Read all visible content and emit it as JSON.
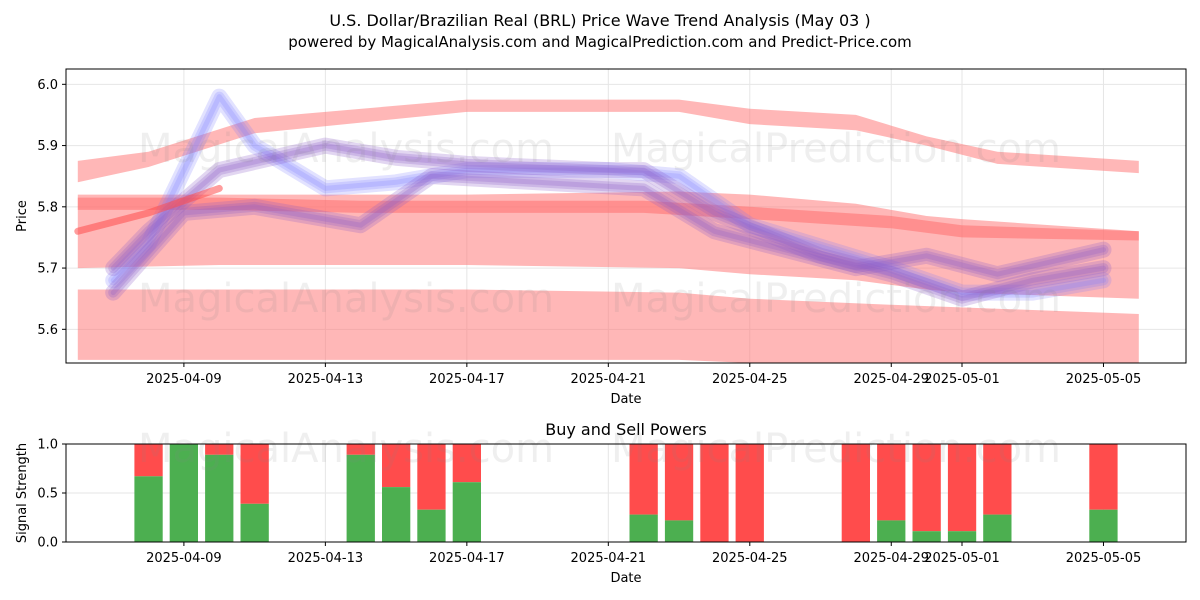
{
  "header": {
    "title": "U.S. Dollar/Brazilian Real (BRL) Price Wave Trend Analysis (May 03 )",
    "subtitle": "powered by MagicalAnalysis.com and MagicalPrediction.com and Predict-Price.com"
  },
  "watermarks": [
    "MagicalAnalysis.com",
    "MagicalPrediction.com"
  ],
  "colors": {
    "buy": "#4caf50",
    "sell": "#ff4c4c",
    "wave_red": "#ff6f6f",
    "wave_blue": "#7a7aff"
  },
  "chart_data": [
    {
      "type": "area",
      "title": "",
      "xlabel": "Date",
      "ylabel": "Price",
      "x_ticks": [
        "2025-04-09",
        "2025-04-13",
        "2025-04-17",
        "2025-04-21",
        "2025-04-25",
        "2025-04-29",
        "2025-05-01",
        "2025-05-05"
      ],
      "y_ticks": [
        5.6,
        5.7,
        5.8,
        5.9,
        6.0
      ],
      "ylim": [
        5.545,
        6.025
      ],
      "xlim": [
        "2025-04-05 16:00",
        "2025-05-07 08:00"
      ],
      "grid": true,
      "red_bands": [
        {
          "name": "upper band",
          "x": [
            "2025-04-06",
            "2025-04-08",
            "2025-04-11",
            "2025-04-17",
            "2025-04-23",
            "2025-04-25",
            "2025-04-28",
            "2025-04-30",
            "2025-05-02",
            "2025-05-06"
          ],
          "upper": [
            5.875,
            5.89,
            5.945,
            5.975,
            5.975,
            5.96,
            5.95,
            5.915,
            5.89,
            5.875
          ],
          "lower": [
            5.84,
            5.865,
            5.92,
            5.955,
            5.955,
            5.935,
            5.925,
            5.9,
            5.87,
            5.855
          ]
        },
        {
          "name": "mid-upper band",
          "x": [
            "2025-04-06",
            "2025-04-10",
            "2025-04-17",
            "2025-04-23",
            "2025-04-25",
            "2025-04-28",
            "2025-04-30",
            "2025-05-01",
            "2025-05-06"
          ],
          "upper": [
            5.82,
            5.82,
            5.82,
            5.825,
            5.82,
            5.805,
            5.785,
            5.78,
            5.76
          ],
          "lower": [
            5.7,
            5.705,
            5.705,
            5.7,
            5.69,
            5.68,
            5.665,
            5.66,
            5.65
          ]
        },
        {
          "name": "lower band",
          "x": [
            "2025-04-06",
            "2025-04-10",
            "2025-04-17",
            "2025-04-23",
            "2025-04-25",
            "2025-04-29",
            "2025-05-06"
          ],
          "upper": [
            5.665,
            5.665,
            5.665,
            5.66,
            5.65,
            5.64,
            5.625
          ],
          "lower": [
            5.55,
            5.55,
            5.55,
            5.55,
            5.545,
            5.545,
            5.545
          ]
        },
        {
          "name": "trend band",
          "x": [
            "2025-04-06",
            "2025-04-08",
            "2025-04-10",
            "2025-04-14",
            "2025-04-17",
            "2025-04-22",
            "2025-04-25",
            "2025-04-29",
            "2025-05-01",
            "2025-05-06"
          ],
          "upper": [
            5.815,
            5.815,
            5.815,
            5.81,
            5.81,
            5.81,
            5.8,
            5.785,
            5.77,
            5.76
          ],
          "lower": [
            5.795,
            5.795,
            5.795,
            5.79,
            5.79,
            5.79,
            5.78,
            5.765,
            5.75,
            5.745
          ]
        }
      ],
      "wave_paths": [
        {
          "name": "blue wave",
          "x": [
            "2025-04-07",
            "2025-04-08",
            "2025-04-09",
            "2025-04-10",
            "2025-04-11",
            "2025-04-13",
            "2025-04-15",
            "2025-04-17",
            "2025-04-21",
            "2025-04-23",
            "2025-04-25",
            "2025-04-29",
            "2025-05-01",
            "2025-05-03",
            "2025-05-05"
          ],
          "y": [
            5.68,
            5.74,
            5.86,
            5.98,
            5.9,
            5.83,
            5.84,
            5.86,
            5.86,
            5.85,
            5.77,
            5.7,
            5.66,
            5.66,
            5.68
          ]
        },
        {
          "name": "purple wave 1",
          "x": [
            "2025-04-07",
            "2025-04-08",
            "2025-04-10",
            "2025-04-13",
            "2025-04-15",
            "2025-04-17",
            "2025-04-21",
            "2025-04-22",
            "2025-04-24",
            "2025-04-27",
            "2025-04-29",
            "2025-05-01",
            "2025-05-03",
            "2025-05-05"
          ],
          "y": [
            5.7,
            5.76,
            5.86,
            5.9,
            5.88,
            5.87,
            5.86,
            5.86,
            5.79,
            5.72,
            5.69,
            5.65,
            5.68,
            5.7
          ]
        },
        {
          "name": "purple wave 2",
          "x": [
            "2025-04-07",
            "2025-04-09",
            "2025-04-11",
            "2025-04-14",
            "2025-04-16",
            "2025-04-19",
            "2025-04-22",
            "2025-04-24",
            "2025-04-28",
            "2025-04-30",
            "2025-05-02",
            "2025-05-05"
          ],
          "y": [
            5.66,
            5.79,
            5.8,
            5.77,
            5.85,
            5.84,
            5.83,
            5.76,
            5.7,
            5.72,
            5.69,
            5.73
          ]
        }
      ],
      "price_line": {
        "x": [
          "2025-04-06",
          "2025-04-08",
          "2025-04-10"
        ],
        "y": [
          5.76,
          5.79,
          5.83
        ]
      }
    },
    {
      "type": "bar",
      "title": "Buy and Sell Powers",
      "xlabel": "Date",
      "ylabel": "Signal Strength",
      "x_ticks": [
        "2025-04-09",
        "2025-04-13",
        "2025-04-17",
        "2025-04-21",
        "2025-04-25",
        "2025-04-29",
        "2025-05-01",
        "2025-05-05"
      ],
      "y_ticks": [
        0.0,
        0.5,
        1.0
      ],
      "ylim": [
        0,
        1
      ],
      "series": [
        {
          "name": "Buy",
          "color": "#4caf50"
        },
        {
          "name": "Sell",
          "color": "#ff4c4c"
        }
      ],
      "bars": [
        {
          "date": "2025-04-08",
          "buy": 0.67
        },
        {
          "date": "2025-04-09",
          "buy": 1.0
        },
        {
          "date": "2025-04-10",
          "buy": 0.89
        },
        {
          "date": "2025-04-11",
          "buy": 0.39
        },
        {
          "date": "2025-04-14",
          "buy": 0.89
        },
        {
          "date": "2025-04-15",
          "buy": 0.56
        },
        {
          "date": "2025-04-16",
          "buy": 0.33
        },
        {
          "date": "2025-04-17",
          "buy": 0.61
        },
        {
          "date": "2025-04-22",
          "buy": 0.28
        },
        {
          "date": "2025-04-23",
          "buy": 0.22
        },
        {
          "date": "2025-04-24",
          "buy": 0.0
        },
        {
          "date": "2025-04-25",
          "buy": 0.0
        },
        {
          "date": "2025-04-28",
          "buy": 0.0
        },
        {
          "date": "2025-04-29",
          "buy": 0.22
        },
        {
          "date": "2025-04-30",
          "buy": 0.11
        },
        {
          "date": "2025-05-01",
          "buy": 0.11
        },
        {
          "date": "2025-05-02",
          "buy": 0.28
        },
        {
          "date": "2025-05-05",
          "buy": 0.33
        }
      ]
    }
  ]
}
